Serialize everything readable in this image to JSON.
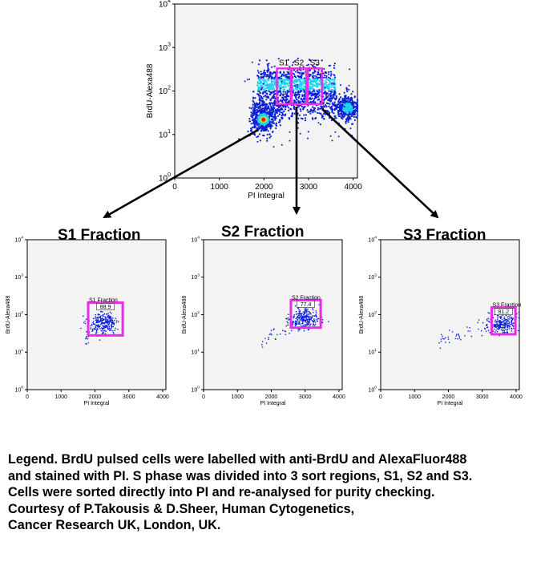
{
  "colors": {
    "gate": "#e62ee6",
    "plot_bg": "#f3f3f3",
    "density_low": "#0a1fd6",
    "density_mid": "#18d2f0",
    "density_high": "#f0e41a",
    "density_peak": "#e81a10",
    "arrow": "#000000"
  },
  "chart_data": [
    {
      "id": "main",
      "type": "scatter",
      "plot_style": "density",
      "title": "",
      "xlabel": "PI Integral",
      "ylabel": "BrdU-Alexa488",
      "xlim": [
        0,
        4096
      ],
      "ylim_log10": [
        0,
        4
      ],
      "x_ticks": [
        "0",
        "1000",
        "2000",
        "3000",
        "4000"
      ],
      "y_ticks": [
        {
          "base": "10",
          "exp": "0"
        },
        {
          "base": "10",
          "exp": "1"
        },
        {
          "base": "10",
          "exp": "2"
        },
        {
          "base": "10",
          "exp": "3"
        },
        {
          "base": "10",
          "exp": "4"
        }
      ],
      "gates": [
        {
          "label": "S1",
          "x": [
            2290,
            2600
          ],
          "y": [
            50,
            330
          ]
        },
        {
          "label": "S2",
          "x": [
            2620,
            2950
          ],
          "y": [
            50,
            330
          ]
        },
        {
          "label": "S3",
          "x": [
            2980,
            3300
          ],
          "y": [
            50,
            330
          ]
        }
      ],
      "populations": [
        {
          "name": "G1",
          "x_center": 1990,
          "y_center": 22
        },
        {
          "name": "S",
          "x_range": [
            1850,
            3600
          ],
          "y_center": 140
        },
        {
          "name": "G2",
          "x_center": 3900,
          "y_center": 40
        }
      ]
    },
    {
      "id": "s1",
      "type": "scatter",
      "panel_title": "S1 Fraction",
      "xlabel": "PI Integral",
      "ylabel": "BrdU-Alexa488",
      "xlim": [
        0,
        4096
      ],
      "ylim_log10": [
        0,
        4
      ],
      "x_ticks": [
        "0",
        "1000",
        "2000",
        "3000",
        "4000"
      ],
      "y_ticks": [
        {
          "base": "10",
          "exp": "0"
        },
        {
          "base": "10",
          "exp": "1"
        },
        {
          "base": "10",
          "exp": "2"
        },
        {
          "base": "10",
          "exp": "3"
        },
        {
          "base": "10",
          "exp": "4"
        }
      ],
      "gate": {
        "label": "S1 Fraction",
        "value": "88.9",
        "x": [
          1800,
          2820
        ],
        "y": [
          28,
          210
        ]
      },
      "cluster": {
        "x_center": 2250,
        "y_center": 60
      }
    },
    {
      "id": "s2",
      "type": "scatter",
      "panel_title": "S2 Fraction",
      "xlabel": "PI Integral",
      "ylabel": "BrdU-Alexa488",
      "xlim": [
        0,
        4096
      ],
      "ylim_log10": [
        0,
        4
      ],
      "x_ticks": [
        "0",
        "1000",
        "2000",
        "3000",
        "4000"
      ],
      "y_ticks": [
        {
          "base": "10",
          "exp": "0"
        },
        {
          "base": "10",
          "exp": "1"
        },
        {
          "base": "10",
          "exp": "2"
        },
        {
          "base": "10",
          "exp": "3"
        },
        {
          "base": "10",
          "exp": "4"
        }
      ],
      "gate": {
        "label": "S2 Fraction",
        "value": "77.4",
        "x": [
          2580,
          3460
        ],
        "y": [
          45,
          245
        ]
      },
      "cluster": {
        "x_center": 3000,
        "y_center": 75
      }
    },
    {
      "id": "s3",
      "type": "scatter",
      "panel_title": "S3 Fraction",
      "xlabel": "PI Integral",
      "ylabel": "BrdU-Alexa488",
      "xlim": [
        0,
        4096
      ],
      "ylim_log10": [
        0,
        4
      ],
      "x_ticks": [
        "0",
        "1000",
        "2000",
        "3000",
        "4000"
      ],
      "y_ticks": [
        {
          "base": "10",
          "exp": "0"
        },
        {
          "base": "10",
          "exp": "1"
        },
        {
          "base": "10",
          "exp": "2"
        },
        {
          "base": "10",
          "exp": "3"
        },
        {
          "base": "10",
          "exp": "4"
        }
      ],
      "gate": {
        "label": "S3 Fraction",
        "value": "81.2",
        "x": [
          3280,
          3980
        ],
        "y": [
          30,
          155
        ]
      },
      "cluster": {
        "x_center": 3600,
        "y_center": 60
      }
    }
  ],
  "legend": {
    "lines": [
      "Legend. BrdU pulsed cells were labelled with anti-BrdU and AlexaFluor488",
      "and stained with PI. S phase was divided into 3 sort regions, S1, S2 and S3.",
      "Cells were sorted directly into PI and re-analysed for purity checking.",
      "Courtesy of P.Takousis & D.Sheer, Human Cytogenetics,",
      "Cancer Research UK, London, UK."
    ]
  }
}
